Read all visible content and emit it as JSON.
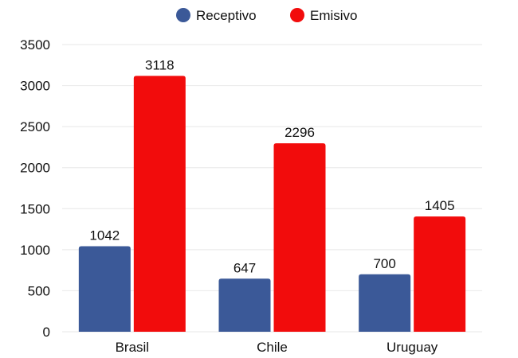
{
  "chart_data": {
    "type": "bar",
    "title": "",
    "xlabel": "",
    "ylabel": "",
    "categories": [
      "Brasil",
      "Chile",
      "Uruguay"
    ],
    "series": [
      {
        "name": "Receptivo",
        "color": "#3b5998",
        "values": [
          1042,
          647,
          700
        ]
      },
      {
        "name": "Emisivo",
        "color": "#f20c0c",
        "values": [
          3118,
          2296,
          1405
        ]
      }
    ],
    "ylim": [
      0,
      3500
    ],
    "yticks": [
      0,
      500,
      1000,
      1500,
      2000,
      2500,
      3000,
      3500
    ],
    "grid": true,
    "legend_position": "top-center",
    "data_labels": true
  }
}
